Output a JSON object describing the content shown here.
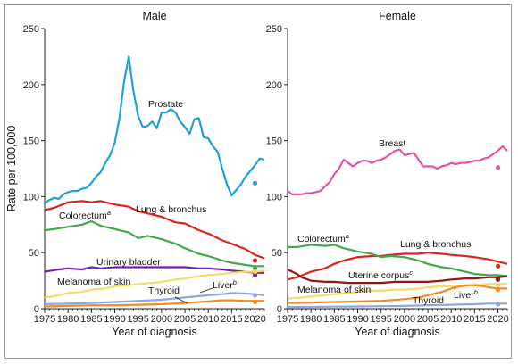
{
  "chart_data": [
    {
      "type": "line",
      "title": "Male",
      "xlabel": "Year of diagnosis",
      "ylabel": "Rate per 100,000",
      "xlim": [
        1975,
        2022
      ],
      "ylim": [
        0,
        250
      ],
      "xticks": [
        1975,
        1980,
        1985,
        1990,
        1995,
        2000,
        2005,
        2010,
        2015,
        2020
      ],
      "yticks": [
        0,
        50,
        100,
        150,
        200,
        250
      ],
      "grid": false,
      "series": [
        {
          "name": "Prostate",
          "color": "#1fa0db",
          "x": [
            1975,
            1976,
            1977,
            1978,
            1979,
            1980,
            1981,
            1982,
            1983,
            1984,
            1985,
            1986,
            1987,
            1988,
            1989,
            1990,
            1991,
            1992,
            1993,
            1994,
            1995,
            1996,
            1997,
            1998,
            1999,
            2000,
            2001,
            2002,
            2003,
            2004,
            2005,
            2006,
            2007,
            2008,
            2009,
            2010,
            2011,
            2012,
            2013,
            2014,
            2015,
            2016,
            2017,
            2018,
            2019,
            2020,
            2021,
            2022
          ],
          "y": [
            94,
            97,
            99,
            98,
            102,
            104,
            105,
            105,
            107,
            108,
            112,
            118,
            122,
            130,
            137,
            148,
            170,
            203,
            225,
            194,
            172,
            162,
            163,
            167,
            161,
            175,
            175,
            178,
            175,
            167,
            162,
            156,
            169,
            170,
            153,
            152,
            145,
            140,
            125,
            111,
            101,
            106,
            111,
            118,
            123,
            128,
            134,
            133
          ],
          "marker": {
            "x": 2020,
            "y": 112
          }
        },
        {
          "name": "Lung & bronchus",
          "color": "#d9261c",
          "x": [
            1975,
            1977,
            1980,
            1983,
            1985,
            1987,
            1990,
            1993,
            1995,
            1997,
            2000,
            2003,
            2005,
            2008,
            2010,
            2013,
            2015,
            2018,
            2020,
            2022
          ],
          "y": [
            88,
            90,
            95,
            96,
            95,
            96,
            93,
            91,
            87,
            85,
            82,
            77,
            76,
            70,
            67,
            61,
            58,
            53,
            48,
            45
          ],
          "marker": {
            "x": 2020,
            "y": 43
          }
        },
        {
          "name": "Colorectum",
          "superscript": "a",
          "color": "#43a84a",
          "x": [
            1975,
            1977,
            1980,
            1983,
            1985,
            1987,
            1990,
            1993,
            1995,
            1997,
            2000,
            2003,
            2005,
            2008,
            2010,
            2013,
            2015,
            2018,
            2020,
            2022
          ],
          "y": [
            70,
            71,
            73,
            75,
            78,
            74,
            71,
            68,
            63,
            65,
            62,
            58,
            54,
            49,
            47,
            43,
            41,
            39,
            38,
            38
          ],
          "marker": {
            "x": 2020,
            "y": 36
          }
        },
        {
          "name": "Urinary bladder",
          "color": "#7a1fb0",
          "x": [
            1975,
            1978,
            1980,
            1983,
            1985,
            1987,
            1990,
            1993,
            1995,
            1998,
            2000,
            2003,
            2005,
            2008,
            2010,
            2013,
            2015,
            2018,
            2020,
            2022
          ],
          "y": [
            33,
            35,
            36,
            35,
            37,
            36,
            37,
            37,
            37,
            37,
            37,
            37,
            37,
            36,
            36,
            35,
            34,
            33,
            32,
            32
          ],
          "marker": {
            "x": 2020,
            "y": 30
          }
        },
        {
          "name": "Melanoma of skin",
          "color": "#f0dc6a",
          "x": [
            1975,
            1978,
            1980,
            1983,
            1985,
            1988,
            1990,
            1993,
            1995,
            1998,
            2000,
            2003,
            2005,
            2008,
            2010,
            2013,
            2015,
            2018,
            2020,
            2022
          ],
          "y": [
            10,
            12,
            14,
            15,
            17,
            18,
            20,
            21,
            22,
            23,
            24,
            26,
            27,
            29,
            30,
            31,
            32,
            33,
            33,
            34
          ],
          "marker": {
            "x": 2020,
            "y": 33
          }
        },
        {
          "name": "Liver",
          "superscript": "b",
          "color": "#8fa6df",
          "x": [
            1975,
            1980,
            1985,
            1990,
            1995,
            2000,
            2005,
            2010,
            2013,
            2015,
            2018,
            2020,
            2022
          ],
          "y": [
            4,
            4.5,
            5,
            6,
            7,
            8,
            10,
            12,
            13,
            14,
            13.5,
            13,
            12
          ],
          "marker": {
            "x": 2020,
            "y": 12
          }
        },
        {
          "name": "Thyroid",
          "color": "#f08a2a",
          "x": [
            1975,
            1980,
            1985,
            1990,
            1995,
            2000,
            2005,
            2010,
            2013,
            2015,
            2018,
            2020,
            2022
          ],
          "y": [
            2,
            2.5,
            3,
            3,
            3.5,
            4,
            5,
            6.5,
            7.5,
            7.5,
            7,
            7,
            7
          ],
          "marker": {
            "x": 2020,
            "y": 6
          }
        }
      ],
      "labels": [
        {
          "text": "Prostate",
          "series": "Prostate"
        },
        {
          "text": "Lung & bronchus",
          "series": "Lung & bronchus"
        },
        {
          "text": "Colorectum",
          "superscript": "a",
          "series": "Colorectum"
        },
        {
          "text": "Urinary bladder",
          "series": "Urinary bladder"
        },
        {
          "text": "Melanoma of skin",
          "series": "Melanoma of skin"
        },
        {
          "text": "Thyroid",
          "series": "Thyroid"
        },
        {
          "text": "Liver",
          "superscript": "b",
          "series": "Liver"
        }
      ]
    },
    {
      "type": "line",
      "title": "Female",
      "xlabel": "Year of diagnosis",
      "ylabel": "",
      "xlim": [
        1975,
        2022
      ],
      "ylim": [
        0,
        250
      ],
      "xticks": [
        1975,
        1980,
        1985,
        1990,
        1995,
        2000,
        2005,
        2010,
        2015,
        2020
      ],
      "yticks": [
        0,
        50,
        100,
        150,
        200,
        250
      ],
      "grid": false,
      "series": [
        {
          "name": "Breast",
          "color": "#e0559f",
          "x": [
            1975,
            1976,
            1977,
            1978,
            1979,
            1980,
            1981,
            1982,
            1983,
            1984,
            1985,
            1986,
            1987,
            1988,
            1989,
            1990,
            1991,
            1992,
            1993,
            1994,
            1995,
            1996,
            1997,
            1998,
            1999,
            2000,
            2001,
            2002,
            2003,
            2004,
            2005,
            2006,
            2007,
            2008,
            2009,
            2010,
            2011,
            2012,
            2013,
            2014,
            2015,
            2016,
            2017,
            2018,
            2019,
            2020,
            2021,
            2022
          ],
          "y": [
            105,
            102,
            102,
            102,
            103,
            103,
            104,
            105,
            109,
            113,
            120,
            125,
            133,
            130,
            127,
            130,
            132,
            132,
            130,
            132,
            133,
            135,
            138,
            141,
            142,
            137,
            138,
            139,
            133,
            127,
            127,
            127,
            125,
            127,
            128,
            130,
            129,
            130,
            130,
            131,
            132,
            132,
            134,
            135,
            138,
            141,
            145,
            141
          ],
          "marker": {
            "x": 2020,
            "y": 126
          }
        },
        {
          "name": "Lung & bronchus",
          "color": "#d9261c",
          "x": [
            1975,
            1977,
            1980,
            1983,
            1985,
            1987,
            1990,
            1993,
            1995,
            1997,
            2000,
            2003,
            2005,
            2008,
            2010,
            2013,
            2015,
            2018,
            2020,
            2022
          ],
          "y": [
            26,
            28,
            33,
            36,
            40,
            43,
            46,
            47,
            47,
            48,
            49,
            49,
            50,
            49,
            48,
            47,
            46,
            44,
            42,
            40
          ],
          "marker": {
            "x": 2020,
            "y": 38
          }
        },
        {
          "name": "Colorectum",
          "superscript": "a",
          "color": "#43a84a",
          "x": [
            1975,
            1977,
            1980,
            1983,
            1985,
            1987,
            1990,
            1993,
            1995,
            1997,
            2000,
            2003,
            2005,
            2008,
            2010,
            2013,
            2015,
            2018,
            2020,
            2022
          ],
          "y": [
            55,
            55,
            57,
            56,
            57,
            54,
            51,
            49,
            46,
            47,
            46,
            43,
            40,
            37,
            36,
            33,
            31,
            30,
            30,
            29
          ],
          "marker": {
            "x": 2020,
            "y": 27
          }
        },
        {
          "name": "Uterine corpus",
          "superscript": "c",
          "color": "#8a1c12",
          "x": [
            1975,
            1977,
            1978,
            1980,
            1983,
            1985,
            1988,
            1990,
            1993,
            1995,
            1998,
            2000,
            2003,
            2005,
            2008,
            2010,
            2013,
            2015,
            2018,
            2020,
            2022
          ],
          "y": [
            35,
            31,
            28,
            25,
            24,
            24,
            23,
            23,
            23,
            23,
            24,
            24,
            24,
            24,
            25,
            26,
            27,
            27,
            28,
            28,
            29
          ],
          "marker": {
            "x": 2020,
            "y": 26
          }
        },
        {
          "name": "Melanoma of skin",
          "color": "#f0dc6a",
          "x": [
            1975,
            1978,
            1980,
            1983,
            1985,
            1988,
            1990,
            1993,
            1995,
            1998,
            2000,
            2003,
            2005,
            2008,
            2010,
            2013,
            2015,
            2018,
            2020,
            2022
          ],
          "y": [
            9,
            10,
            11,
            12,
            13,
            14,
            15,
            16,
            16,
            17,
            17,
            18,
            19,
            20,
            20,
            21,
            21,
            22,
            22,
            22
          ],
          "marker": {
            "x": 2020,
            "y": 21
          }
        },
        {
          "name": "Thyroid",
          "color": "#f08a2a",
          "x": [
            1975,
            1980,
            1985,
            1990,
            1995,
            2000,
            2003,
            2005,
            2008,
            2010,
            2012,
            2014,
            2015,
            2017,
            2018,
            2020,
            2022
          ],
          "y": [
            5,
            5.5,
            6,
            6.5,
            7,
            8.5,
            10,
            12,
            15,
            18,
            20,
            21,
            21,
            20,
            19,
            18,
            18
          ],
          "marker": {
            "x": 2020,
            "y": 17
          }
        },
        {
          "name": "Liver",
          "superscript": "b",
          "color": "#8fa6df",
          "x": [
            1975,
            1980,
            1985,
            1990,
            1995,
            2000,
            2005,
            2010,
            2015,
            2018,
            2020,
            2022
          ],
          "y": [
            1.5,
            1.6,
            1.8,
            2,
            2.2,
            2.5,
            3,
            3.5,
            4,
            4.5,
            4.5,
            4.5
          ],
          "marker": {
            "x": 2020,
            "y": 4
          }
        }
      ],
      "labels": [
        {
          "text": "Breast",
          "series": "Breast"
        },
        {
          "text": "Colorectum",
          "superscript": "a",
          "series": "Colorectum"
        },
        {
          "text": "Lung & bronchus",
          "series": "Lung & bronchus"
        },
        {
          "text": "Uterine corpus",
          "superscript": "c",
          "series": "Uterine corpus"
        },
        {
          "text": "Melanoma of skin",
          "series": "Melanoma of skin"
        },
        {
          "text": "Thyroid",
          "series": "Thyroid"
        },
        {
          "text": "Liver",
          "superscript": "b",
          "series": "Liver"
        }
      ]
    }
  ]
}
